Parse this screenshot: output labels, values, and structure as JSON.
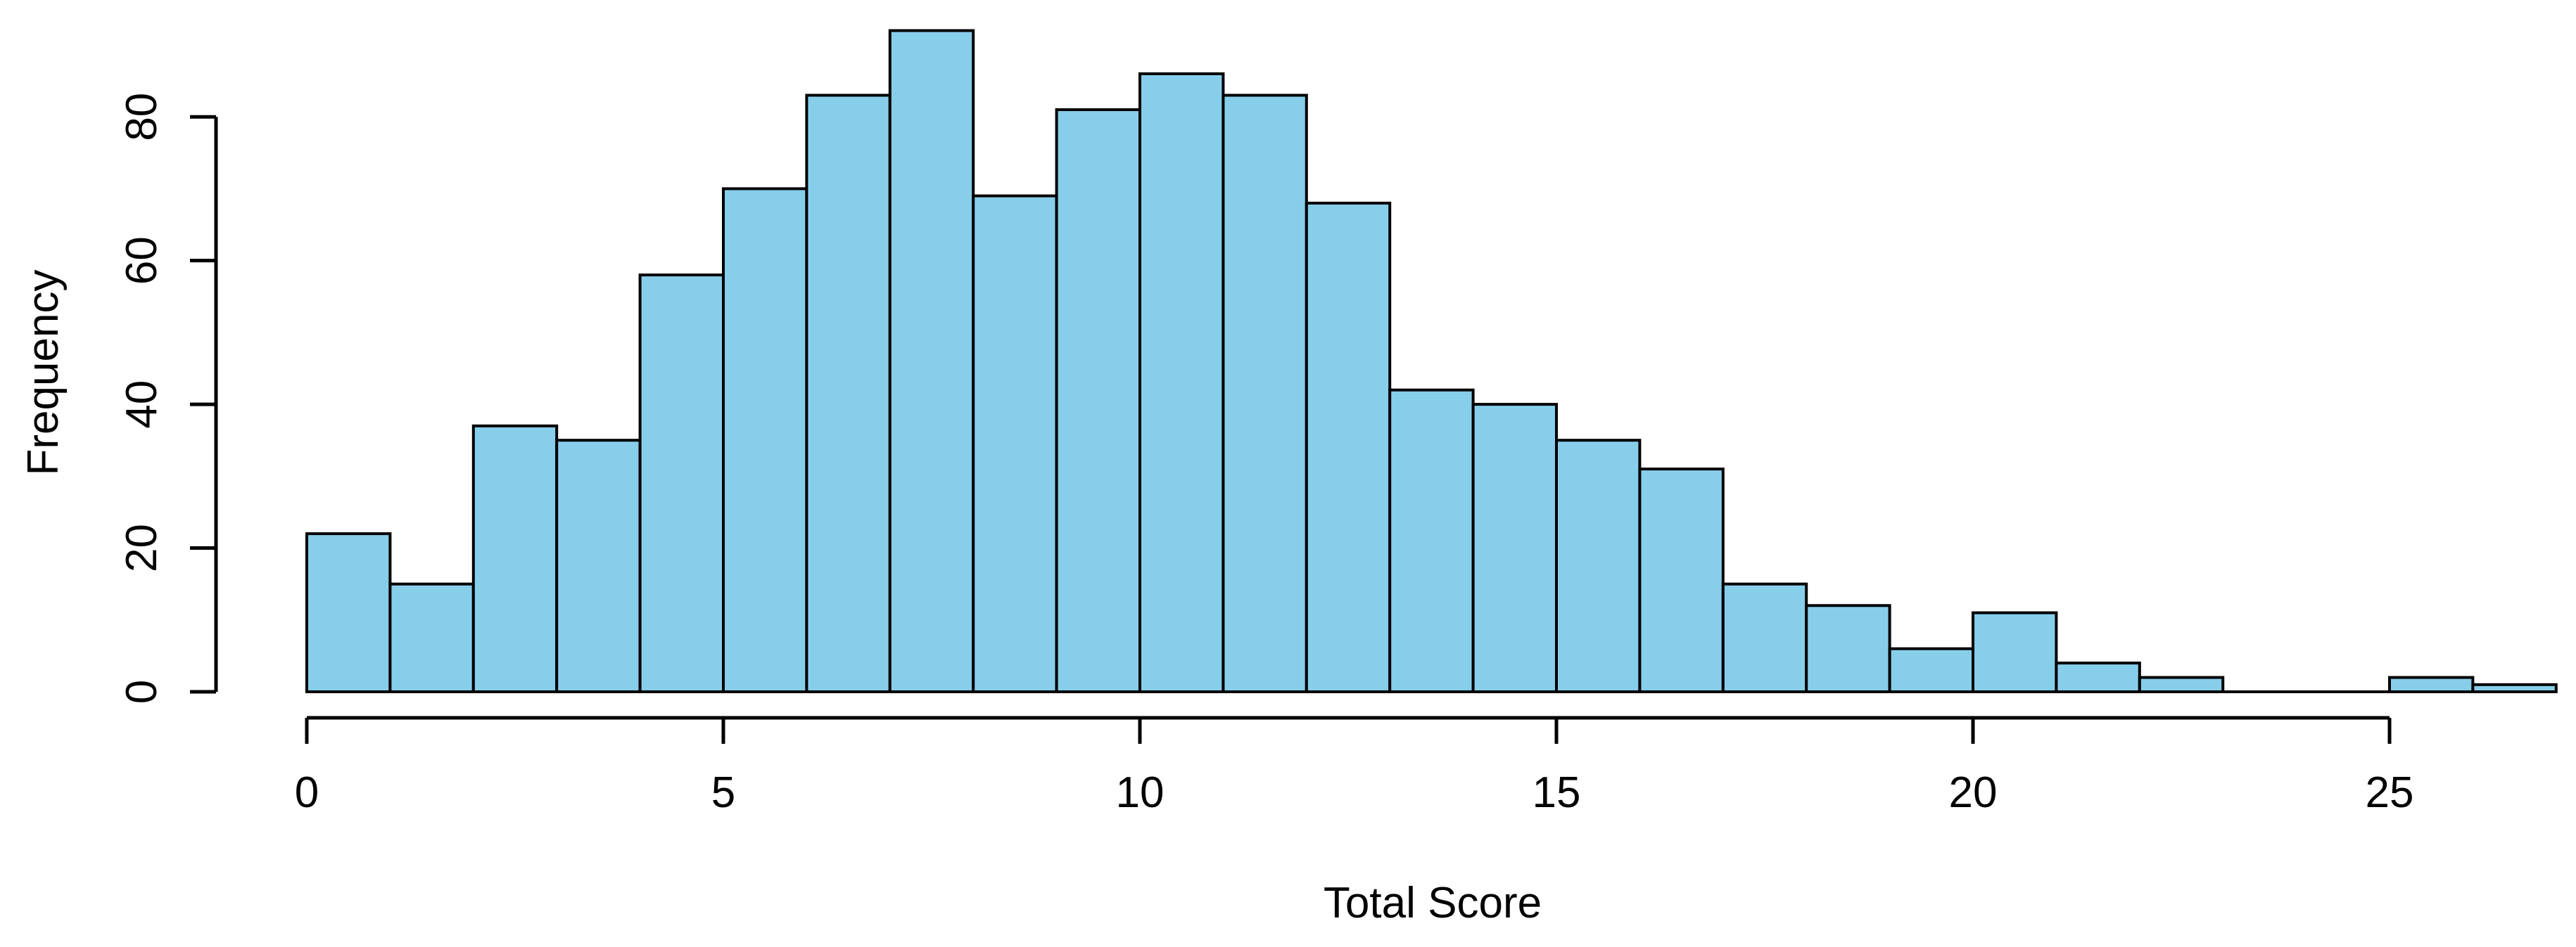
{
  "figure": {
    "background": "#ffffff"
  },
  "chart_data": {
    "type": "bar",
    "subtype": "histogram",
    "title": "",
    "xlabel": "Total Score",
    "ylabel": "Frequency",
    "bin_edges": [
      0,
      1,
      2,
      3,
      4,
      5,
      6,
      7,
      8,
      9,
      10,
      11,
      12,
      13,
      14,
      15,
      16,
      17,
      18,
      19,
      20,
      21,
      22,
      23,
      24,
      25,
      26,
      27
    ],
    "values": [
      22,
      15,
      37,
      35,
      58,
      70,
      83,
      92,
      69,
      81,
      86,
      83,
      68,
      42,
      40,
      35,
      31,
      15,
      12,
      6,
      11,
      4,
      2,
      0,
      0,
      2,
      1
    ],
    "total_n": 1000,
    "x_ticks": [
      0,
      5,
      10,
      15,
      20,
      25
    ],
    "y_ticks": [
      0,
      20,
      40,
      60,
      80
    ],
    "xlim": [
      0,
      27
    ],
    "ylim": [
      0,
      92
    ],
    "grid": false,
    "legend": null,
    "bar_fill": "#87CEEB",
    "bar_stroke": "#000000",
    "axis_color": "#000000",
    "text_color": "#000000"
  }
}
